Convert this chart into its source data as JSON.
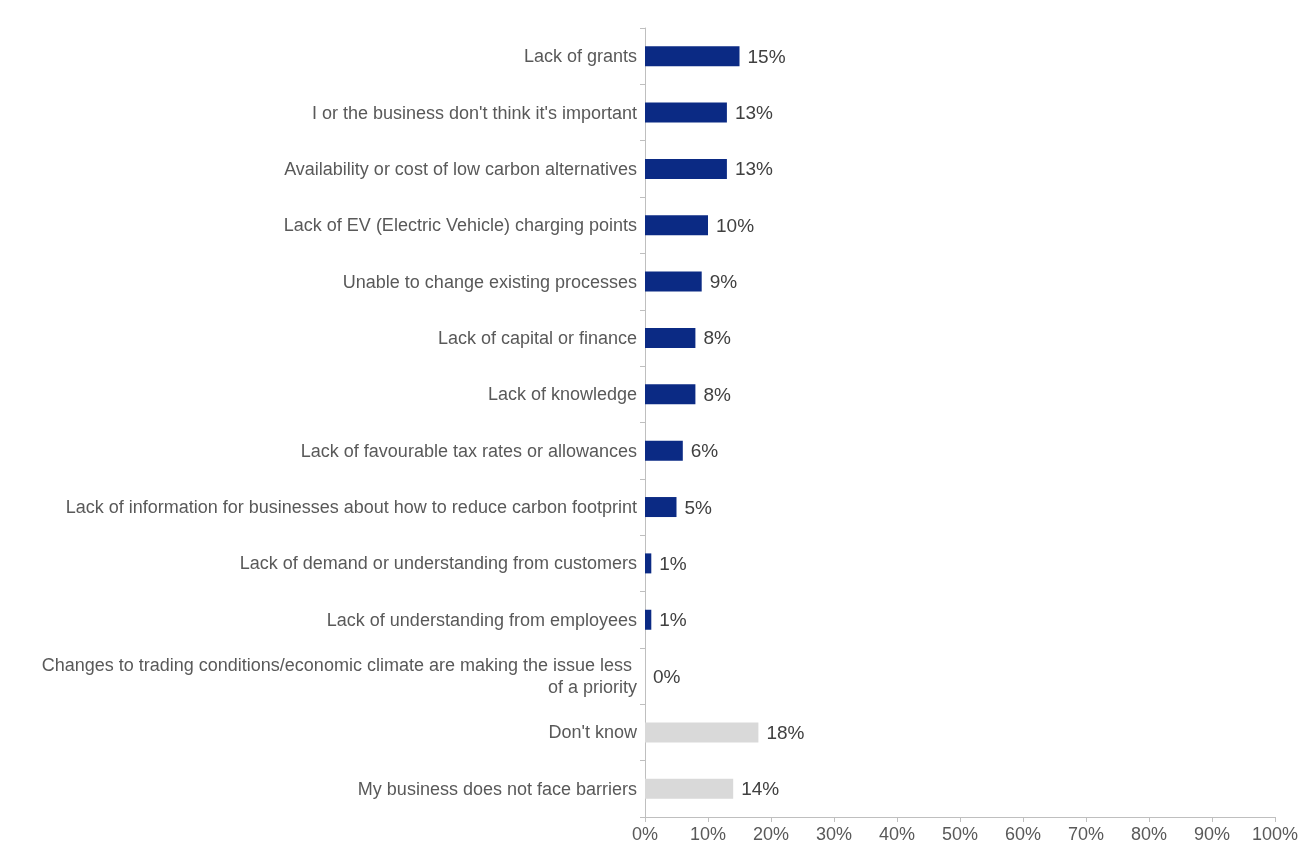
{
  "chart_data": {
    "type": "bar",
    "orientation": "horizontal",
    "categories": [
      "Lack of grants",
      "I or the business don't think it's important",
      "Availability or cost of low carbon alternatives",
      "Lack of EV (Electric Vehicle) charging points",
      "Unable to change existing processes",
      "Lack of capital or finance",
      "Lack of knowledge",
      "Lack of favourable tax rates or allowances",
      "Lack of information for businesses about how to reduce carbon footprint",
      "Lack of demand or understanding from customers",
      "Lack of understanding from employees",
      "Changes to trading conditions/economic climate are making the issue less of a priority",
      "Don't know",
      "My business does not face barriers"
    ],
    "values": [
      15,
      13,
      13,
      10,
      9,
      8,
      8,
      6,
      5,
      1,
      1,
      0,
      18,
      14
    ],
    "value_labels": [
      "15%",
      "13%",
      "13%",
      "10%",
      "9%",
      "8%",
      "8%",
      "6%",
      "5%",
      "1%",
      "1%",
      "0%",
      "18%",
      "14%"
    ],
    "colors": [
      "#0b2a84",
      "#0b2a84",
      "#0b2a84",
      "#0b2a84",
      "#0b2a84",
      "#0b2a84",
      "#0b2a84",
      "#0b2a84",
      "#0b2a84",
      "#0b2a84",
      "#0b2a84",
      "#0b2a84",
      "#d9d9d9",
      "#d9d9d9"
    ],
    "xlim": [
      0,
      100
    ],
    "xticks": [
      {
        "value": 0,
        "label": "0%"
      },
      {
        "value": 10,
        "label": "10%"
      },
      {
        "value": 20,
        "label": "20%"
      },
      {
        "value": 30,
        "label": "30%"
      },
      {
        "value": 40,
        "label": "40%"
      },
      {
        "value": 50,
        "label": "50%"
      },
      {
        "value": 60,
        "label": "60%"
      },
      {
        "value": 70,
        "label": "70%"
      },
      {
        "value": 80,
        "label": "80%"
      },
      {
        "value": 90,
        "label": "90%"
      },
      {
        "value": 100,
        "label": "100%"
      }
    ]
  }
}
